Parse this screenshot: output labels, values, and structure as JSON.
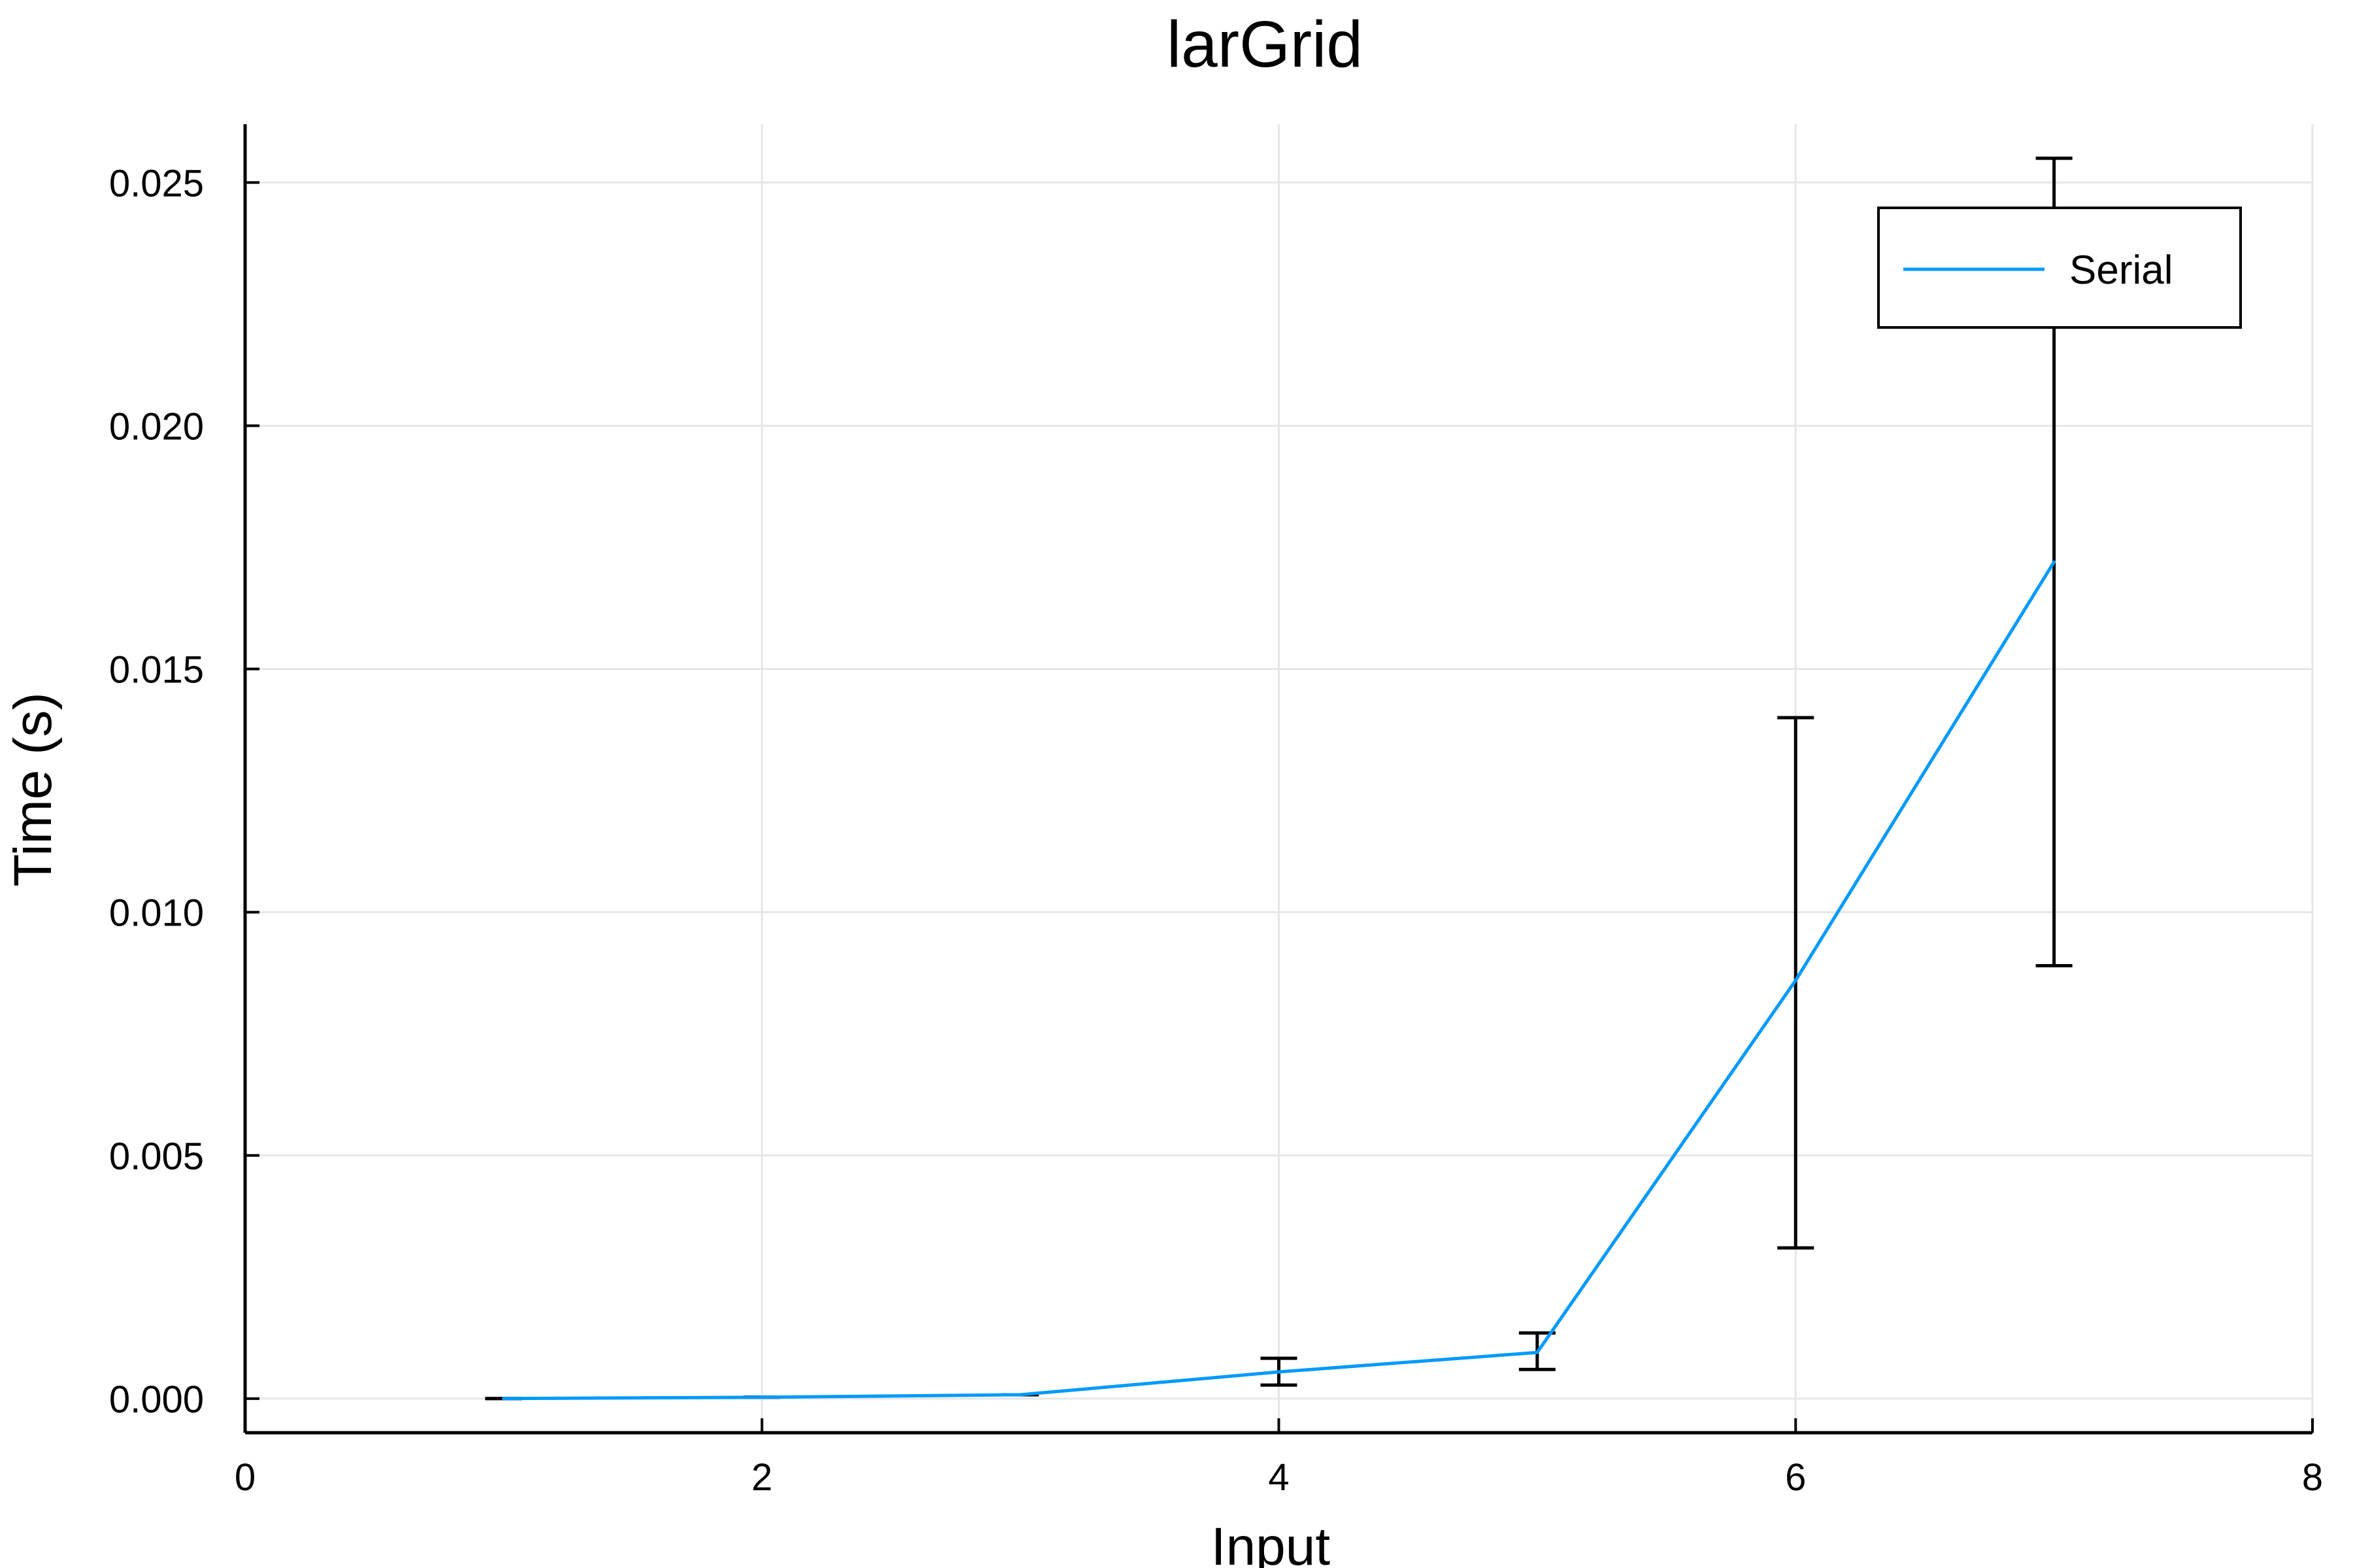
{
  "chart_data": {
    "type": "line",
    "title": "larGrid",
    "xlabel": "Input",
    "ylabel": "Time (s)",
    "xlim": [
      0,
      8
    ],
    "ylim": [
      -0.0007,
      0.0262
    ],
    "xticks": [
      0,
      2,
      4,
      6,
      8
    ],
    "xtick_labels": [
      "0",
      "2",
      "4",
      "6",
      "8"
    ],
    "yticks": [
      0.0,
      0.005,
      0.01,
      0.015,
      0.02,
      0.025
    ],
    "ytick_labels": [
      "0.000",
      "0.005",
      "0.010",
      "0.015",
      "0.020",
      "0.025"
    ],
    "grid": true,
    "legend": {
      "position": "top-right",
      "entries": [
        "Serial"
      ]
    },
    "series": [
      {
        "name": "Serial",
        "color": "#009AFA",
        "x": [
          1,
          2,
          3,
          4,
          5,
          6,
          7
        ],
        "y": [
          2e-06,
          3e-05,
          8e-05,
          0.00055,
          0.00095,
          0.0086,
          0.0172
        ],
        "err_low": [
          2e-06,
          3e-05,
          8e-05,
          0.00028,
          0.0006,
          0.0031,
          0.0089
        ],
        "err_high": [
          2e-06,
          3e-05,
          8e-05,
          0.00083,
          0.00135,
          0.014,
          0.0255
        ]
      }
    ],
    "errorbar_color": "#000000"
  }
}
